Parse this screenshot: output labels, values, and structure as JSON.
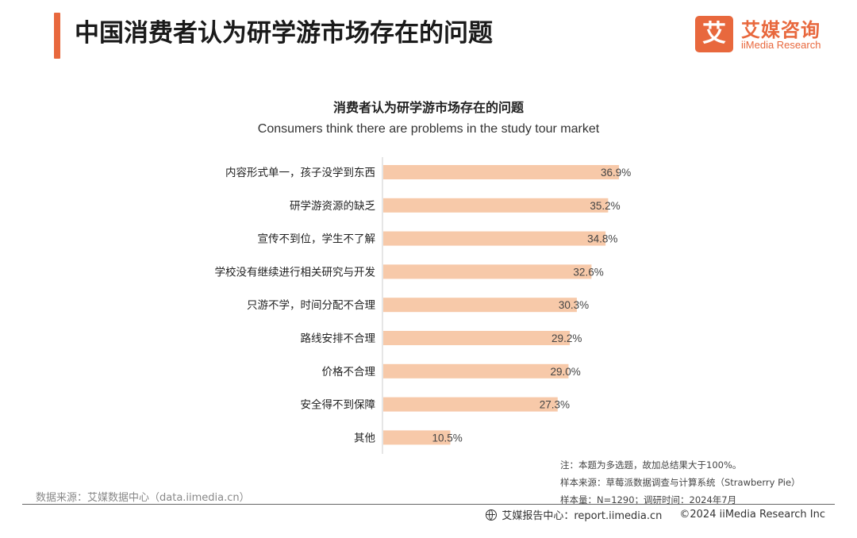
{
  "header": {
    "title": "中国消费者认为研学游市场存在的问题",
    "logo_mark": "艾",
    "logo_cn": "艾媒咨询",
    "logo_en": "iiMedia Research"
  },
  "chart_data": {
    "type": "bar",
    "orientation": "horizontal",
    "title": "消费者认为研学游市场存在的问题",
    "subtitle": "Consumers think there are problems in the study tour market",
    "categories": [
      "内容形式单一，孩子没学到东西",
      "研学游资源的缺乏",
      "宣传不到位，学生不了解",
      "学校没有继续进行相关研究与开发",
      "只游不学，时间分配不合理",
      "路线安排不合理",
      "价格不合理",
      "安全得不到保障",
      "其他"
    ],
    "values": [
      36.9,
      35.2,
      34.8,
      32.6,
      30.3,
      29.2,
      29.0,
      27.3,
      10.5
    ],
    "value_labels": [
      "36.9%",
      "35.2%",
      "34.8%",
      "32.6%",
      "30.3%",
      "29.2%",
      "29.0%",
      "27.3%",
      "10.5%"
    ],
    "unit": "%",
    "xlim": [
      0,
      100
    ],
    "bar_color": "#f7c9a9",
    "grid": false,
    "legend": "none"
  },
  "notes": {
    "note": "注：本题为多选题，故加总结果大于100%。",
    "sample_source": "样本来源：草莓派数据调查与计算系统（Strawberry Pie）",
    "sample_size": "样本量：N=1290；调研时间：2024年7月"
  },
  "footer": {
    "source": "数据来源：艾媒数据中心（data.iimedia.cn）",
    "report_center": "艾媒报告中心：report.iimedia.cn",
    "copyright": "©2024  iiMedia Research  Inc"
  },
  "colors": {
    "accent": "#e8683d",
    "bar": "#f7c9a9"
  }
}
